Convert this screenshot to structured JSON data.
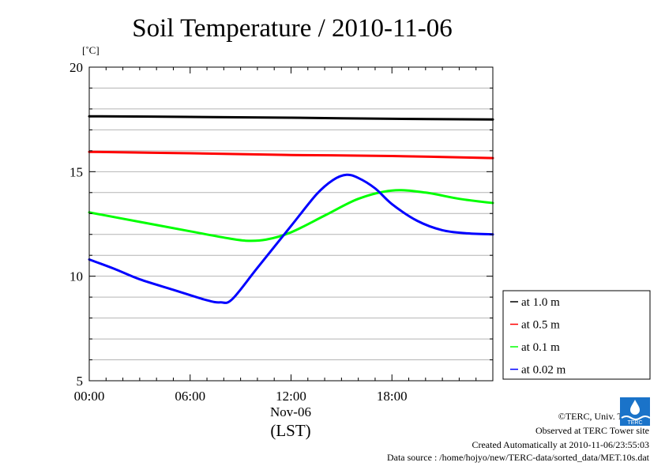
{
  "chart_data": {
    "type": "line",
    "title": "Soil Temperature / 2010-11-06",
    "ylabel": "[˚C]",
    "xlabel": "(LST)",
    "x_date_label": "Nov-06",
    "ylim": [
      5,
      20
    ],
    "xlim": [
      0,
      24
    ],
    "y_ticks": [
      "5",
      "10",
      "15",
      "20"
    ],
    "x_ticks": [
      "00:00",
      "06:00",
      "12:00",
      "18:00"
    ],
    "grid": "horizontal",
    "legend_position": "bottom-right outside",
    "series": [
      {
        "name": "at 1.0 m",
        "color": "#000000",
        "x": [
          0,
          6,
          12,
          18,
          24
        ],
        "y": [
          17.65,
          17.62,
          17.58,
          17.53,
          17.5
        ]
      },
      {
        "name": "at 0.5 m",
        "color": "#ff0000",
        "x": [
          0,
          6,
          12,
          18,
          24
        ],
        "y": [
          15.95,
          15.88,
          15.8,
          15.75,
          15.65
        ]
      },
      {
        "name": "at 0.1 m",
        "color": "#00ff00",
        "x": [
          0,
          3,
          6,
          8,
          9.3,
          10.5,
          12,
          14,
          16,
          18,
          20,
          22,
          24
        ],
        "y": [
          13.05,
          12.6,
          12.15,
          11.85,
          11.7,
          11.75,
          12.1,
          12.9,
          13.7,
          14.1,
          14.0,
          13.7,
          13.5
        ]
      },
      {
        "name": "at 0.02 m",
        "color": "#0000ff",
        "x": [
          0,
          1.5,
          3,
          5,
          7,
          7.8,
          8.5,
          10,
          12,
          13.5,
          14.5,
          15.3,
          16,
          17,
          18,
          19.5,
          21,
          22.5,
          24
        ],
        "y": [
          10.8,
          10.35,
          9.85,
          9.35,
          8.85,
          8.75,
          8.9,
          10.4,
          12.4,
          13.9,
          14.6,
          14.85,
          14.7,
          14.2,
          13.45,
          12.65,
          12.2,
          12.05,
          12.0
        ]
      }
    ]
  },
  "footer": {
    "copyright": "©TERC, Univ. Tsukuba",
    "observed": "Observed at TERC Tower site",
    "created": "Created Automatically at 2010-11-06/23:55:03",
    "source": "Data source : /home/hojyo/new/TERC-data/sorted_data/MET.10s.dat"
  },
  "logo": {
    "text": "TERC",
    "color": "#1a73c9"
  }
}
